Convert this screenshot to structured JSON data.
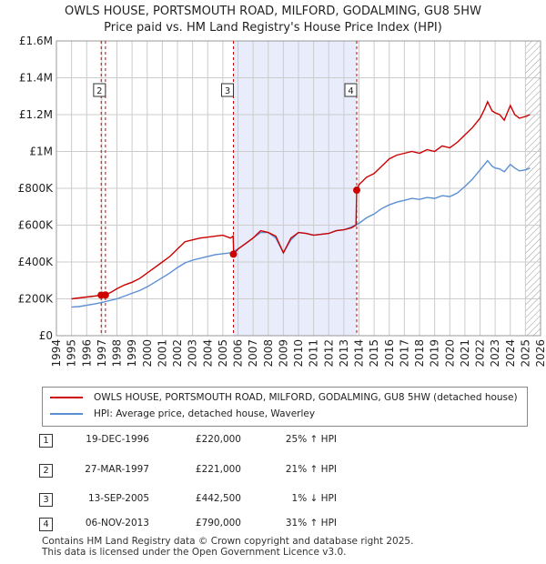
{
  "title_line1": "OWLS HOUSE, PORTSMOUTH ROAD, MILFORD, GODALMING, GU8 5HW",
  "title_line2": "Price paid vs. HM Land Registry's House Price Index (HPI)",
  "colors": {
    "property": "#cc0000",
    "hpi": "#5b8fd4",
    "shade": "#e8ecfb",
    "grid": "#cccccc",
    "vline": "#cc0000"
  },
  "chart_data": {
    "type": "line",
    "title": "Price paid vs. HM Land Registry's House Price Index (HPI)",
    "xlabel": "",
    "ylabel": "",
    "xlim": [
      1995,
      2026
    ],
    "ylim": [
      0,
      1600000
    ],
    "x_ticks": [
      1994,
      1995,
      1996,
      1997,
      1998,
      1999,
      2000,
      2001,
      2002,
      2003,
      2004,
      2005,
      2006,
      2007,
      2008,
      2009,
      2010,
      2011,
      2012,
      2013,
      2014,
      2015,
      2016,
      2017,
      2018,
      2019,
      2020,
      2021,
      2022,
      2023,
      2024,
      2025,
      2026
    ],
    "y_ticks": [
      {
        "value": 0,
        "label": "£0"
      },
      {
        "value": 200000,
        "label": "£200K"
      },
      {
        "value": 400000,
        "label": "£400K"
      },
      {
        "value": 600000,
        "label": "£600K"
      },
      {
        "value": 800000,
        "label": "£800K"
      },
      {
        "value": 1000000,
        "label": "£1M"
      },
      {
        "value": 1200000,
        "label": "£1.2M"
      },
      {
        "value": 1400000,
        "label": "£1.4M"
      },
      {
        "value": 1600000,
        "label": "£1.6M"
      }
    ],
    "shaded_range": [
      2005.7,
      2013.85
    ],
    "hatched_from": 2025.0,
    "series": [
      {
        "name": "OWLS HOUSE, PORTSMOUTH ROAD, MILFORD, GODALMING, GU8 5HW (detached house)",
        "color": "#cc0000",
        "x": [
          1995.0,
          1995.5,
          1996.0,
          1996.5,
          1996.96,
          1997.24,
          1997.6,
          1998.0,
          1998.5,
          1999.0,
          1999.5,
          2000.0,
          2000.5,
          2001.0,
          2001.5,
          2002.0,
          2002.5,
          2003.0,
          2003.5,
          2004.0,
          2004.5,
          2005.0,
          2005.5,
          2005.68,
          2005.72,
          2006.0,
          2006.5,
          2007.0,
          2007.5,
          2008.0,
          2008.5,
          2009.0,
          2009.5,
          2010.0,
          2010.5,
          2011.0,
          2011.5,
          2012.0,
          2012.5,
          2013.0,
          2013.5,
          2013.8,
          2013.85,
          2014.0,
          2014.5,
          2015.0,
          2015.5,
          2016.0,
          2016.5,
          2017.0,
          2017.5,
          2018.0,
          2018.5,
          2019.0,
          2019.5,
          2020.0,
          2020.5,
          2021.0,
          2021.5,
          2022.0,
          2022.3,
          2022.5,
          2022.8,
          2023.0,
          2023.3,
          2023.6,
          2024.0,
          2024.3,
          2024.6,
          2025.0,
          2025.3
        ],
        "values": [
          200000,
          205000,
          210000,
          215000,
          220000,
          221000,
          235000,
          255000,
          275000,
          290000,
          310000,
          340000,
          370000,
          400000,
          430000,
          470000,
          510000,
          520000,
          530000,
          535000,
          540000,
          545000,
          530000,
          540000,
          442500,
          470000,
          500000,
          530000,
          570000,
          560000,
          540000,
          450000,
          530000,
          560000,
          555000,
          545000,
          550000,
          555000,
          570000,
          575000,
          585000,
          600000,
          790000,
          820000,
          860000,
          880000,
          920000,
          960000,
          980000,
          990000,
          1000000,
          990000,
          1010000,
          1000000,
          1030000,
          1020000,
          1050000,
          1090000,
          1130000,
          1180000,
          1230000,
          1270000,
          1220000,
          1210000,
          1200000,
          1170000,
          1250000,
          1200000,
          1180000,
          1190000,
          1200000
        ]
      },
      {
        "name": "HPI: Average price, detached house, Waverley",
        "color": "#5b8fd4",
        "x": [
          1995.0,
          1995.5,
          1996.0,
          1996.5,
          1997.0,
          1997.5,
          1998.0,
          1998.5,
          1999.0,
          1999.5,
          2000.0,
          2000.5,
          2001.0,
          2001.5,
          2002.0,
          2002.5,
          2003.0,
          2003.5,
          2004.0,
          2004.5,
          2005.0,
          2005.5,
          2006.0,
          2006.5,
          2007.0,
          2007.5,
          2008.0,
          2008.5,
          2009.0,
          2009.5,
          2010.0,
          2010.5,
          2011.0,
          2011.5,
          2012.0,
          2012.5,
          2013.0,
          2013.5,
          2014.0,
          2014.5,
          2015.0,
          2015.5,
          2016.0,
          2016.5,
          2017.0,
          2017.5,
          2018.0,
          2018.5,
          2019.0,
          2019.5,
          2020.0,
          2020.5,
          2021.0,
          2021.5,
          2022.0,
          2022.3,
          2022.5,
          2022.8,
          2023.0,
          2023.3,
          2023.6,
          2024.0,
          2024.3,
          2024.6,
          2025.0,
          2025.3
        ],
        "values": [
          155000,
          158000,
          165000,
          172000,
          180000,
          190000,
          200000,
          215000,
          230000,
          245000,
          265000,
          290000,
          315000,
          340000,
          370000,
          395000,
          410000,
          420000,
          430000,
          440000,
          445000,
          450000,
          470000,
          500000,
          530000,
          560000,
          560000,
          530000,
          450000,
          520000,
          560000,
          555000,
          545000,
          550000,
          555000,
          570000,
          575000,
          590000,
          610000,
          640000,
          660000,
          690000,
          710000,
          725000,
          735000,
          745000,
          740000,
          750000,
          745000,
          760000,
          755000,
          775000,
          810000,
          850000,
          900000,
          930000,
          950000,
          920000,
          910000,
          905000,
          890000,
          930000,
          910000,
          895000,
          900000,
          910000
        ]
      }
    ],
    "transactions": [
      {
        "id": "1",
        "x": 1996.96,
        "value": 220000,
        "show_label": false
      },
      {
        "id": "2",
        "x": 1997.24,
        "value": 221000,
        "show_label": true
      },
      {
        "id": "3",
        "x": 2005.7,
        "value": 442500,
        "show_label": true
      },
      {
        "id": "4",
        "x": 2013.85,
        "value": 790000,
        "show_label": true
      }
    ]
  },
  "legend": {
    "property_label": "OWLS HOUSE, PORTSMOUTH ROAD, MILFORD, GODALMING, GU8 5HW (detached house)",
    "hpi_label": "HPI: Average price, detached house, Waverley"
  },
  "table": [
    {
      "num": "1",
      "date": "19-DEC-1996",
      "price": "£220,000",
      "hpi": "25% ↑ HPI"
    },
    {
      "num": "2",
      "date": "27-MAR-1997",
      "price": "£221,000",
      "hpi": "21% ↑ HPI"
    },
    {
      "num": "3",
      "date": "13-SEP-2005",
      "price": "£442,500",
      "hpi": "1% ↓ HPI"
    },
    {
      "num": "4",
      "date": "06-NOV-2013",
      "price": "£790,000",
      "hpi": "31% ↑ HPI"
    }
  ],
  "footer": {
    "line1": "Contains HM Land Registry data © Crown copyright and database right 2025.",
    "line2": "This data is licensed under the Open Government Licence v3.0."
  }
}
